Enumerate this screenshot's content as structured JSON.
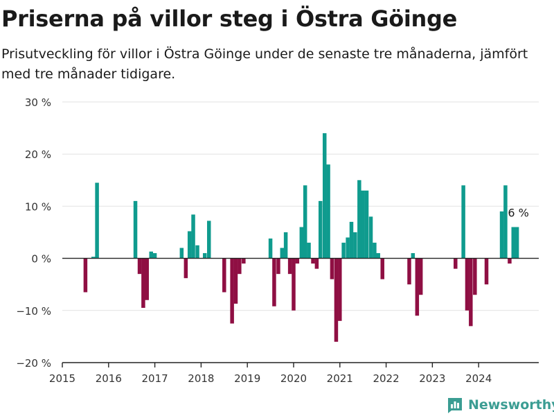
{
  "header": {
    "title": "Priserna på villor steg i Östra Göinge",
    "subtitle": "Prisutveckling för villor i Östra Göinge under de senaste tre månaderna, jämfört med tre månader tidigare."
  },
  "brand": {
    "name": "Newsworthy",
    "color": "#3b9d93",
    "icon": "bar-chart-logo-icon"
  },
  "colors": {
    "positive": "#0f9b8e",
    "negative": "#8f0f43",
    "grid": "#e2e2e2",
    "axis": "#222222"
  },
  "chart_data": {
    "type": "bar",
    "title": "",
    "xlabel": "",
    "ylabel": "",
    "ylim": [
      -20,
      30
    ],
    "y_ticks": [
      -20,
      -10,
      0,
      10,
      20,
      30
    ],
    "y_tick_labels": [
      "−20 %",
      "−10 %",
      "0 %",
      "10 %",
      "20 %",
      "30 %"
    ],
    "x_range": [
      2015.0,
      2025.3
    ],
    "x_ticks": [
      2015,
      2016,
      2017,
      2018,
      2019,
      2020,
      2021,
      2022,
      2023,
      2024
    ],
    "x_tick_labels": [
      "2015",
      "2016",
      "2017",
      "2018",
      "2019",
      "2020",
      "2021",
      "2022",
      "2023",
      "2024"
    ],
    "grid": true,
    "annotation": {
      "text": "6 %",
      "x": 2024.83,
      "y": 6
    },
    "x": [
      2015.5,
      2015.58,
      2015.67,
      2015.75,
      2016.58,
      2016.67,
      2016.75,
      2016.83,
      2016.92,
      2017.0,
      2017.58,
      2017.67,
      2017.75,
      2017.83,
      2017.92,
      2018.08,
      2018.17,
      2018.5,
      2018.67,
      2018.75,
      2018.83,
      2018.92,
      2019.5,
      2019.58,
      2019.67,
      2019.75,
      2019.83,
      2019.92,
      2020.0,
      2020.08,
      2020.17,
      2020.25,
      2020.33,
      2020.42,
      2020.5,
      2020.58,
      2020.67,
      2020.75,
      2020.83,
      2020.92,
      2021.0,
      2021.08,
      2021.17,
      2021.25,
      2021.33,
      2021.42,
      2021.5,
      2021.58,
      2021.67,
      2021.75,
      2021.83,
      2021.92,
      2022.5,
      2022.58,
      2022.67,
      2022.75,
      2023.5,
      2023.67,
      2023.75,
      2023.83,
      2023.92,
      2024.17,
      2024.5,
      2024.58,
      2024.67,
      2024.75,
      2024.83
    ],
    "values": [
      -6.5,
      0,
      0.3,
      14.5,
      11,
      -3,
      -9.5,
      -8,
      1.3,
      1,
      2,
      -3.8,
      5.2,
      8.4,
      2.5,
      1,
      7.2,
      -6.5,
      -12.5,
      -8.7,
      -3,
      -1,
      3.8,
      -9.2,
      -3,
      2,
      5,
      -3,
      -10,
      -1,
      6,
      14,
      3,
      -1,
      -2,
      11,
      24,
      18,
      -4,
      -16,
      -12,
      3,
      4,
      7,
      5,
      15,
      13,
      13,
      8,
      3,
      1,
      -4,
      -5,
      1,
      -11,
      -7,
      -2,
      14,
      -10,
      -13,
      -7,
      -5,
      9,
      14,
      -1,
      6,
      6
    ]
  }
}
